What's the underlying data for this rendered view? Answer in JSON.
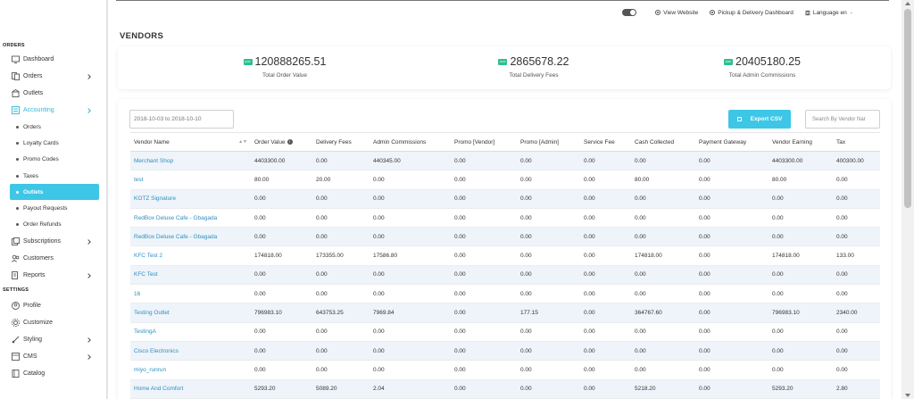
{
  "sidebar": {
    "orders_section": "ORDERS",
    "settings_section": "SETTINGS",
    "items": [
      {
        "label": "Dashboard",
        "icon": "dashboard-icon"
      },
      {
        "label": "Orders",
        "icon": "orders-icon"
      },
      {
        "label": "Outlets",
        "icon": "outlets-icon"
      },
      {
        "label": "Accounting",
        "icon": "accounting-icon"
      }
    ],
    "accounting_sub": [
      {
        "label": "Orders"
      },
      {
        "label": "Loyalty Cards"
      },
      {
        "label": "Promo Codes"
      },
      {
        "label": "Taxes"
      },
      {
        "label": "Outlets"
      },
      {
        "label": "Payout Requests"
      },
      {
        "label": "Order Refunds"
      }
    ],
    "more_items": [
      {
        "label": "Subscriptions",
        "icon": "subscriptions-icon"
      },
      {
        "label": "Customers",
        "icon": "customers-icon"
      },
      {
        "label": "Reports",
        "icon": "reports-icon"
      }
    ],
    "settings_items": [
      {
        "label": "Profile",
        "icon": "profile-icon"
      },
      {
        "label": "Customize",
        "icon": "customize-icon"
      },
      {
        "label": "Styling",
        "icon": "styling-icon"
      },
      {
        "label": "CMS",
        "icon": "cms-icon"
      },
      {
        "label": "Catalog",
        "icon": "catalog-icon"
      }
    ]
  },
  "topbar": {
    "view_website": "View Website",
    "pickup_dashboard": "Pickup & Delivery Dashboard",
    "language": "Language en"
  },
  "page_title": "VENDORS",
  "stats": [
    {
      "value": "120888265.51",
      "label": "Total Order Value",
      "badge": "EGP"
    },
    {
      "value": "2865678.22",
      "label": "Total Delivery Fees",
      "badge": "EGP"
    },
    {
      "value": "20405180.25",
      "label": "Total Admin Commissions",
      "badge": "EGP"
    }
  ],
  "filters": {
    "date_range": "2018-10-03 to 2018-10-10",
    "export_label": "Export CSV",
    "search_placeholder": "Search By Vendor Nar"
  },
  "table": {
    "columns": [
      "Vendor Name",
      "Order Value",
      "Delivery Fees",
      "Admin Commissions",
      "Promo [Vendor]",
      "Promo [Admin]",
      "Service Fee",
      "Cash Collected",
      "Payment Gateway",
      "Vendor Earning",
      "Tax"
    ],
    "rows": [
      [
        "Merchant Shop",
        "4403300.00",
        "0.00",
        "440345.00",
        "0.00",
        "0.00",
        "0.00",
        "0.00",
        "0.00",
        "4403300.00",
        "400300.00"
      ],
      [
        "test",
        "80.00",
        "20.00",
        "0.00",
        "0.00",
        "0.00",
        "0.00",
        "80.00",
        "0.00",
        "80.00",
        "0.00"
      ],
      [
        "KOTZ Signature",
        "0.00",
        "0.00",
        "0.00",
        "0.00",
        "0.00",
        "0.00",
        "0.00",
        "0.00",
        "0.00",
        "0.00"
      ],
      [
        "RedBox Deluxe Cafe - Gbagada",
        "0.00",
        "0.00",
        "0.00",
        "0.00",
        "0.00",
        "0.00",
        "0.00",
        "0.00",
        "0.00",
        "0.00"
      ],
      [
        "RedBox Deluxe Cafe - Gbagada",
        "0.00",
        "0.00",
        "0.00",
        "0.00",
        "0.00",
        "0.00",
        "0.00",
        "0.00",
        "0.00",
        "0.00"
      ],
      [
        "KFC Test 2",
        "174818.00",
        "173355.00",
        "17586.80",
        "0.00",
        "0.00",
        "0.00",
        "174818.00",
        "0.00",
        "174818.00",
        "133.00"
      ],
      [
        "KFC Test",
        "0.00",
        "0.00",
        "0.00",
        "0.00",
        "0.00",
        "0.00",
        "0.00",
        "0.00",
        "0.00",
        "0.00"
      ],
      [
        "16",
        "0.00",
        "0.00",
        "0.00",
        "0.00",
        "0.00",
        "0.00",
        "0.00",
        "0.00",
        "0.00",
        "0.00"
      ],
      [
        "Testing Outlet",
        "796983.10",
        "643753.25",
        "7969.84",
        "0.00",
        "177.15",
        "0.00",
        "364767.60",
        "0.00",
        "796983.10",
        "2340.00"
      ],
      [
        "TestingA",
        "0.00",
        "0.00",
        "0.00",
        "0.00",
        "0.00",
        "0.00",
        "0.00",
        "0.00",
        "0.00",
        "0.00"
      ],
      [
        "Cisco Electronics",
        "0.00",
        "0.00",
        "0.00",
        "0.00",
        "0.00",
        "0.00",
        "0.00",
        "0.00",
        "0.00",
        "0.00"
      ],
      [
        "miyo_runrun",
        "0.00",
        "0.00",
        "0.00",
        "0.00",
        "0.00",
        "0.00",
        "0.00",
        "0.00",
        "0.00",
        "0.00"
      ],
      [
        "Home And Comfort",
        "5293.20",
        "5089.20",
        "2.04",
        "0.00",
        "0.00",
        "0.00",
        "5218.20",
        "0.00",
        "5293.20",
        "2.80"
      ]
    ]
  },
  "colors": {
    "accent": "#3ec6e6",
    "link": "#2f8fbf",
    "badge": "#2fbf8f",
    "row_stripe": "#eef4fa"
  }
}
